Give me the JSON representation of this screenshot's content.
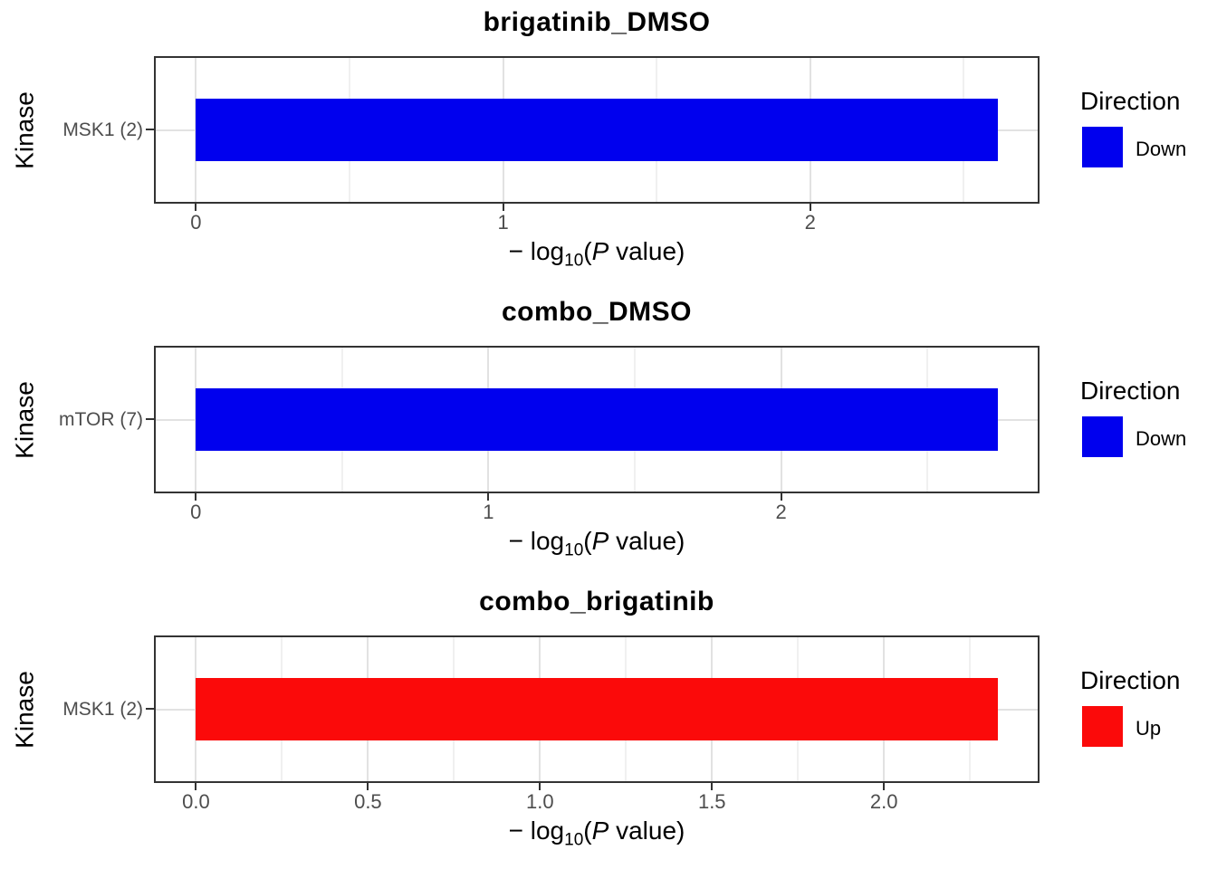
{
  "figure": {
    "y_axis_title": "Kinase",
    "x_axis_label": {
      "pre": "− log",
      "sub": "10",
      "open": "(",
      "p_var": "P",
      "post": " value)"
    }
  },
  "colors": {
    "down": "#0000ee",
    "up": "#fb0a0a",
    "panel_border": "#333333",
    "grid_major": "#e2e2e2",
    "grid_minor": "#f0f0f0",
    "tick_label": "#4d4d4d",
    "text": "#000000",
    "background": "#ffffff"
  },
  "chart_data": [
    {
      "type": "bar",
      "orientation": "horizontal",
      "title": "brigatinib_DMSO",
      "xlabel": "-log10(P value)",
      "ylabel": "Kinase",
      "categories": [
        "MSK1 (2)"
      ],
      "values": [
        2.61
      ],
      "direction": "Down",
      "bar_color": "#0000ee",
      "xlim": [
        -0.131,
        2.741
      ],
      "x_major_ticks": [
        0,
        1,
        2
      ],
      "x_major_labels": [
        "0",
        "1",
        "2"
      ],
      "x_minor_ticks": [
        0.5,
        1.5,
        2.5
      ],
      "grid": true,
      "legend": {
        "title": "Direction",
        "position": "right",
        "entries": [
          {
            "label": "Down",
            "color": "#0000ee"
          }
        ]
      }
    },
    {
      "type": "bar",
      "orientation": "horizontal",
      "title": "combo_DMSO",
      "xlabel": "-log10(P value)",
      "ylabel": "Kinase",
      "categories": [
        "mTOR (7)"
      ],
      "values": [
        2.74
      ],
      "direction": "Down",
      "bar_color": "#0000ee",
      "xlim": [
        -0.137,
        2.877
      ],
      "x_major_ticks": [
        0,
        1,
        2
      ],
      "x_major_labels": [
        "0",
        "1",
        "2"
      ],
      "x_minor_ticks": [
        0.5,
        1.5,
        2.5
      ],
      "grid": true,
      "legend": {
        "title": "Direction",
        "position": "right",
        "entries": [
          {
            "label": "Down",
            "color": "#0000ee"
          }
        ]
      }
    },
    {
      "type": "bar",
      "orientation": "horizontal",
      "title": "combo_brigatinib",
      "xlabel": "-log10(P value)",
      "ylabel": "Kinase",
      "categories": [
        "MSK1 (2)"
      ],
      "values": [
        2.33
      ],
      "direction": "Up",
      "bar_color": "#fb0a0a",
      "xlim": [
        -0.117,
        2.447
      ],
      "x_major_ticks": [
        0,
        0.5,
        1,
        1.5,
        2
      ],
      "x_major_labels": [
        "0.0",
        "0.5",
        "1.0",
        "1.5",
        "2.0"
      ],
      "x_minor_ticks": [
        0.25,
        0.75,
        1.25,
        1.75,
        2.25
      ],
      "grid": true,
      "legend": {
        "title": "Direction",
        "position": "right",
        "entries": [
          {
            "label": "Up",
            "color": "#fb0a0a"
          }
        ]
      }
    }
  ]
}
